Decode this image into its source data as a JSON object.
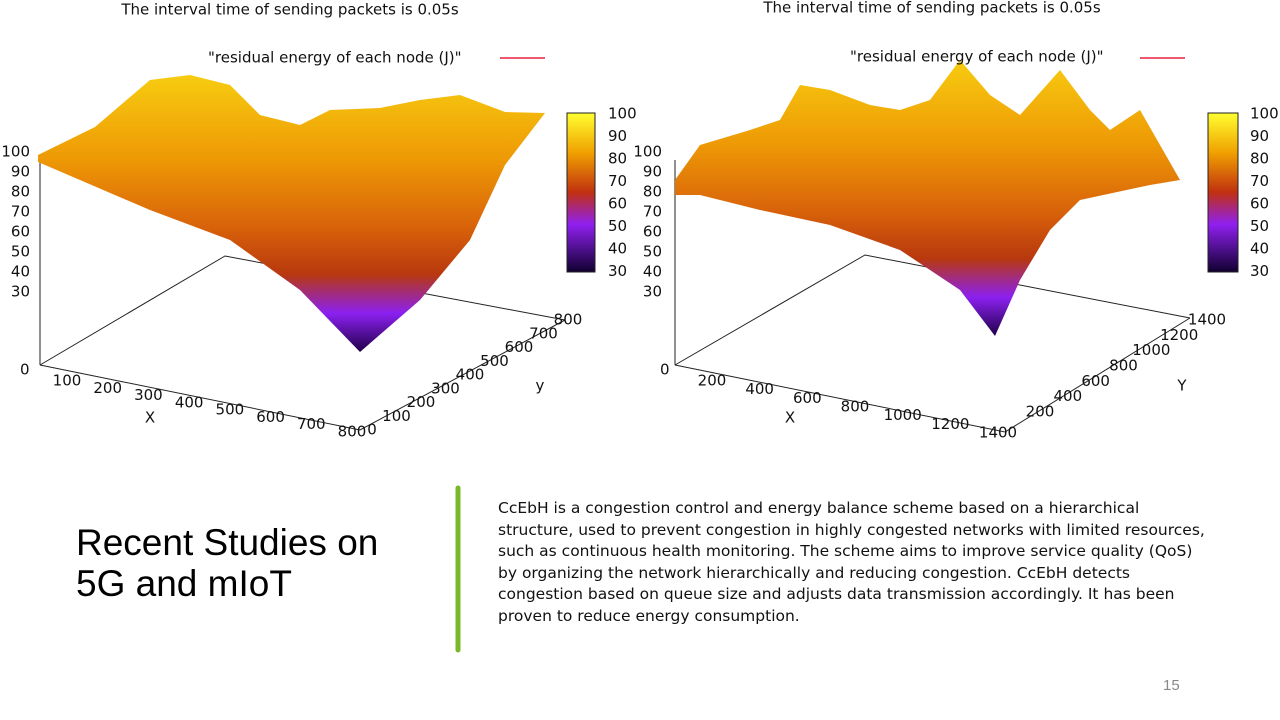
{
  "figures": [
    {
      "title": "The interval time of sending packets is 0.05s",
      "legend": "\"residual energy of each node (J)\"",
      "z_ticks": [
        100,
        90,
        80,
        70,
        60,
        50,
        40,
        30
      ],
      "origin": 0,
      "x_label": "X",
      "x_ticks": [
        100,
        200,
        300,
        400,
        500,
        600,
        700,
        800
      ],
      "y_label": "y",
      "y_ticks": [
        0,
        100,
        200,
        300,
        400,
        500,
        600,
        700,
        800
      ],
      "colorbar_ticks": [
        100,
        90,
        80,
        70,
        60,
        50,
        40,
        30
      ]
    },
    {
      "title": "The interval time of sending packets is 0.05s",
      "legend": "\"residual energy of each node (J)\"",
      "z_ticks": [
        100,
        90,
        80,
        70,
        60,
        50,
        40,
        30
      ],
      "origin": 0,
      "x_label": "X",
      "x_ticks": [
        200,
        400,
        600,
        800,
        1000,
        1200,
        1400
      ],
      "y_label": "Y",
      "y_ticks": [
        200,
        400,
        600,
        800,
        1000,
        1200,
        1400
      ],
      "colorbar_ticks": [
        100,
        90,
        80,
        70,
        60,
        50,
        40,
        30
      ]
    }
  ],
  "slide": {
    "title": "Recent Studies on 5G and mIoT",
    "body": "CcEbH is a congestion control and energy balance scheme based on a hierarchical structure, used to prevent congestion in highly congested networks with limited resources, such as continuous health monitoring. The scheme aims to improve service quality (QoS) by organizing the network hierarchically and reducing congestion. CcEbH detects congestion based on queue size and adjusts data transmission accordingly. It has been proven to reduce energy consumption.",
    "page_number": "15"
  }
}
